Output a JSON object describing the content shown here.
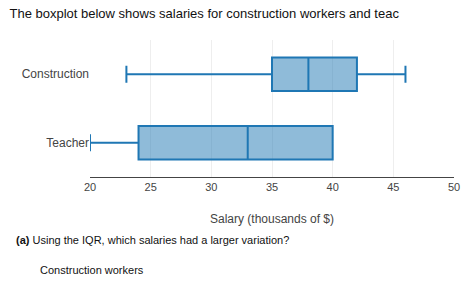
{
  "chart_data": {
    "type": "box",
    "title": "The boxplot below shows salaries for construction workers and teac",
    "xlabel": "Salary (thousands of $)",
    "xlim": [
      20,
      50
    ],
    "xticks": [
      20,
      25,
      30,
      35,
      40,
      45,
      50
    ],
    "series": [
      {
        "name": "Construction",
        "whisker_low": 23,
        "q1": 35,
        "median": 38,
        "q3": 42,
        "whisker_high": 46
      },
      {
        "name": "Teacher",
        "whisker_low": 20,
        "q1": 24,
        "median": 33,
        "q3": 40,
        "whisker_high": 40
      }
    ],
    "annotations": [
      "(a)",
      "Using the IQR, which salaries had a larger variation?",
      "Construction workers"
    ]
  }
}
